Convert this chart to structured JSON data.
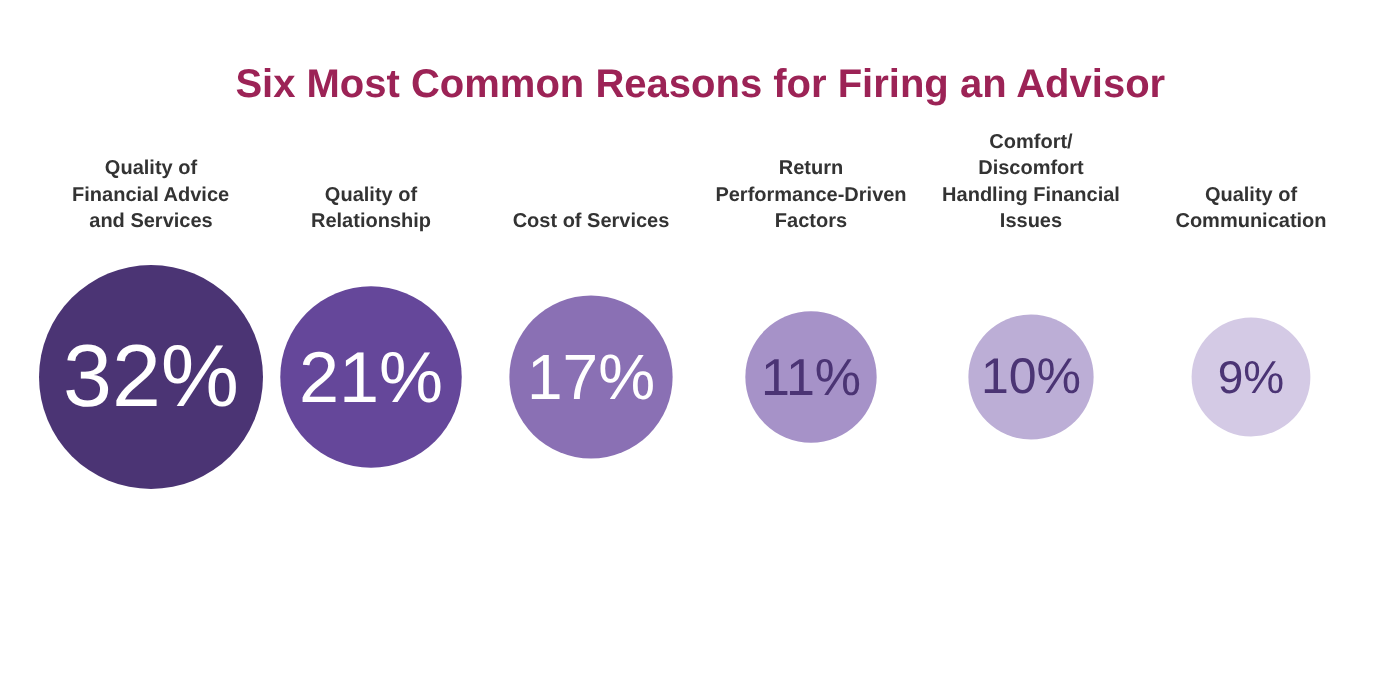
{
  "chart_data": {
    "type": "other",
    "title": "Six Most Common Reasons for Firing an Advisor",
    "categories": [
      "Quality of Financial Advice and Services",
      "Quality of Relationship",
      "Cost of Services",
      "Return Performance-Driven Factors",
      "Comfort/ Discomfort Handling Financial Issues",
      "Quality of Communication"
    ],
    "values": [
      32,
      21,
      17,
      11,
      10,
      9
    ],
    "colors": [
      "#4b3474",
      "#65479a",
      "#8a70b4",
      "#a692c8",
      "#bcaed6",
      "#d4cae5"
    ],
    "value_labels": [
      "32%",
      "21%",
      "17%",
      "11%",
      "10%",
      "9%"
    ]
  }
}
